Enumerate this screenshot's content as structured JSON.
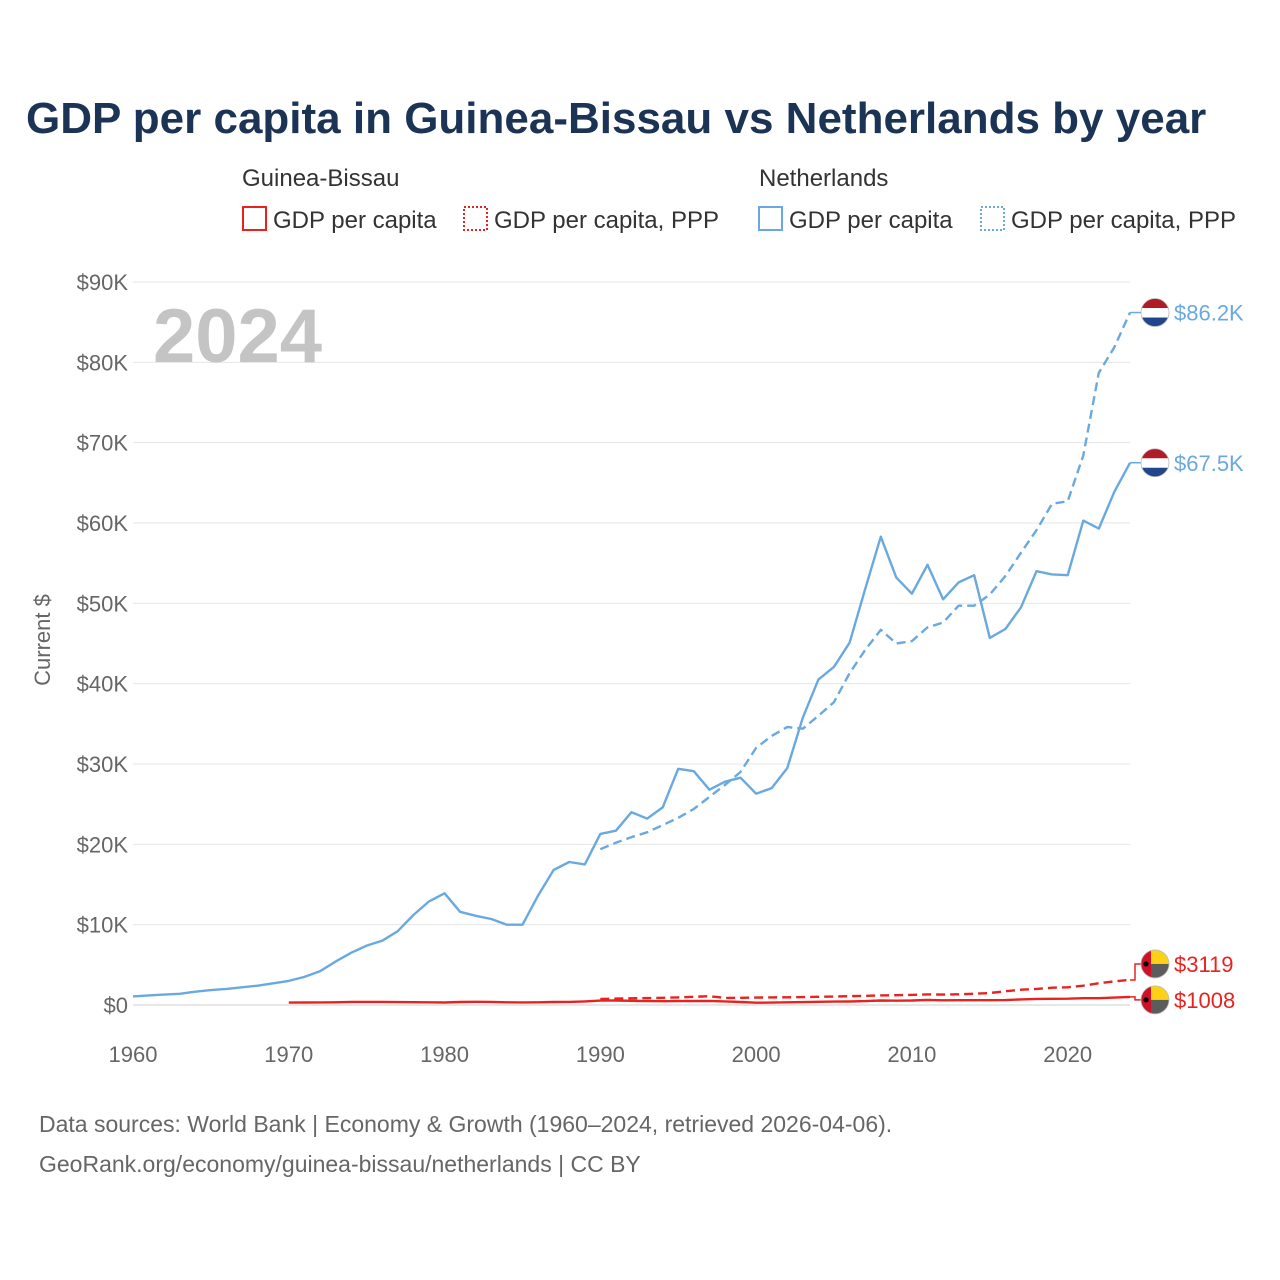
{
  "title": "GDP per capita in Guinea-Bissau vs Netherlands by year",
  "legend": {
    "groups": [
      {
        "country": "Guinea-Bissau",
        "items": [
          "GDP per capita",
          "GDP per capita, PPP"
        ]
      },
      {
        "country": "Netherlands",
        "items": [
          "GDP per capita",
          "GDP per capita, PPP"
        ]
      }
    ]
  },
  "year_stamp": "2024",
  "colors": {
    "guinea_bissau": "#e8231f",
    "netherlands": "#6aa9e0",
    "title": "#1b3355"
  },
  "footer": {
    "line1": "Data sources: World Bank | Economy & Growth (1960–2024, retrieved 2026-04-06).",
    "line2": "GeoRank.org/economy/guinea-bissau/netherlands | CC BY"
  },
  "chart_data": {
    "type": "line",
    "title": "GDP per capita in Guinea-Bissau vs Netherlands by year",
    "xlabel": "",
    "ylabel": "Current $",
    "xlim": [
      1960,
      2024
    ],
    "ylim": [
      0,
      90000
    ],
    "x_ticks": [
      1960,
      1970,
      1980,
      1990,
      2000,
      2010,
      2020
    ],
    "x_tick_labels": [
      "1960",
      "1970",
      "1980",
      "1990",
      "2000",
      "2010",
      "2020"
    ],
    "y_ticks": [
      0,
      10000,
      20000,
      30000,
      40000,
      50000,
      60000,
      70000,
      80000,
      90000
    ],
    "y_tick_labels": [
      "$0",
      "$10K",
      "$20K",
      "$30K",
      "$40K",
      "$50K",
      "$60K",
      "$70K",
      "$80K",
      "$90K"
    ],
    "grid": true,
    "series": [
      {
        "name": "Netherlands GDP per capita",
        "country": "Netherlands",
        "metric": "GDP per capita",
        "style": "solid",
        "end_label": "$67.5K",
        "x": [
          1960,
          1961,
          1962,
          1963,
          1964,
          1965,
          1966,
          1967,
          1968,
          1969,
          1970,
          1971,
          1972,
          1973,
          1974,
          1975,
          1976,
          1977,
          1978,
          1979,
          1980,
          1981,
          1982,
          1983,
          1984,
          1985,
          1986,
          1987,
          1988,
          1989,
          1990,
          1991,
          1992,
          1993,
          1994,
          1995,
          1996,
          1997,
          1998,
          1999,
          2000,
          2001,
          2002,
          2003,
          2004,
          2005,
          2006,
          2007,
          2008,
          2009,
          2010,
          2011,
          2012,
          2013,
          2014,
          2015,
          2016,
          2017,
          2018,
          2019,
          2020,
          2021,
          2022,
          2023,
          2024
        ],
        "values": [
          1070,
          1200,
          1300,
          1400,
          1650,
          1850,
          2000,
          2200,
          2400,
          2700,
          3000,
          3500,
          4200,
          5400,
          6500,
          7400,
          8000,
          9200,
          11200,
          12900,
          13900,
          11600,
          11100,
          10700,
          10000,
          10000,
          13600,
          16800,
          17800,
          17500,
          21300,
          21700,
          24000,
          23200,
          24600,
          29400,
          29100,
          26800,
          27800,
          28300,
          26300,
          27000,
          29500,
          35800,
          40500,
          42100,
          45100,
          51800,
          58300,
          53200,
          51200,
          54800,
          50500,
          52600,
          53500,
          45700,
          46800,
          49500,
          54000,
          53600,
          53500,
          60300,
          59300,
          63900,
          67500
        ]
      },
      {
        "name": "Netherlands GDP per capita, PPP",
        "country": "Netherlands",
        "metric": "GDP per capita, PPP",
        "style": "dashed",
        "end_label": "$86.2K",
        "x": [
          1990,
          1991,
          1992,
          1993,
          1994,
          1995,
          1996,
          1997,
          1998,
          1999,
          2000,
          2001,
          2002,
          2003,
          2004,
          2005,
          2006,
          2007,
          2008,
          2009,
          2010,
          2011,
          2012,
          2013,
          2014,
          2015,
          2016,
          2017,
          2018,
          2019,
          2020,
          2021,
          2022,
          2023,
          2024
        ],
        "values": [
          19400,
          20200,
          20900,
          21500,
          22400,
          23300,
          24400,
          25900,
          27400,
          29000,
          32000,
          33500,
          34600,
          34400,
          36000,
          37700,
          41300,
          44200,
          46700,
          45000,
          45300,
          47000,
          47600,
          49700,
          49700,
          51100,
          53400,
          56300,
          59100,
          62400,
          62700,
          68400,
          78700,
          81900,
          86200
        ]
      },
      {
        "name": "Guinea-Bissau GDP per capita",
        "country": "Guinea-Bissau",
        "metric": "GDP per capita",
        "style": "solid",
        "end_label": "$1008",
        "x": [
          1970,
          1971,
          1972,
          1973,
          1974,
          1975,
          1976,
          1977,
          1978,
          1979,
          1980,
          1981,
          1982,
          1983,
          1984,
          1985,
          1986,
          1987,
          1988,
          1989,
          1990,
          1991,
          1992,
          1993,
          1994,
          1995,
          1996,
          1997,
          1998,
          1999,
          2000,
          2001,
          2002,
          2003,
          2004,
          2005,
          2006,
          2007,
          2008,
          2009,
          2010,
          2011,
          2012,
          2013,
          2014,
          2015,
          2016,
          2017,
          2018,
          2019,
          2020,
          2021,
          2022,
          2023,
          2024
        ],
        "values": [
          300,
          310,
          320,
          340,
          380,
          390,
          380,
          360,
          350,
          330,
          310,
          370,
          400,
          380,
          330,
          320,
          330,
          370,
          390,
          450,
          550,
          560,
          520,
          490,
          470,
          480,
          500,
          510,
          450,
          370,
          290,
          300,
          330,
          360,
          400,
          420,
          430,
          480,
          560,
          540,
          560,
          640,
          580,
          600,
          600,
          600,
          610,
          700,
          760,
          770,
          790,
          850,
          850,
          920,
          1008
        ]
      },
      {
        "name": "Guinea-Bissau GDP per capita, PPP",
        "country": "Guinea-Bissau",
        "metric": "GDP per capita, PPP",
        "style": "dashed",
        "end_label": "$3119",
        "x": [
          1990,
          1991,
          1992,
          1993,
          1994,
          1995,
          1996,
          1997,
          1998,
          1999,
          2000,
          2001,
          2002,
          2003,
          2004,
          2005,
          2006,
          2007,
          2008,
          2009,
          2010,
          2011,
          2012,
          2013,
          2014,
          2015,
          2016,
          2017,
          2018,
          2019,
          2020,
          2021,
          2022,
          2023,
          2024
        ],
        "values": [
          750,
          800,
          830,
          860,
          900,
          950,
          1020,
          1100,
          880,
          900,
          920,
          950,
          960,
          980,
          1020,
          1060,
          1100,
          1150,
          1200,
          1220,
          1260,
          1320,
          1300,
          1330,
          1400,
          1500,
          1700,
          1900,
          2000,
          2150,
          2200,
          2400,
          2700,
          2950,
          3119
        ]
      }
    ]
  }
}
